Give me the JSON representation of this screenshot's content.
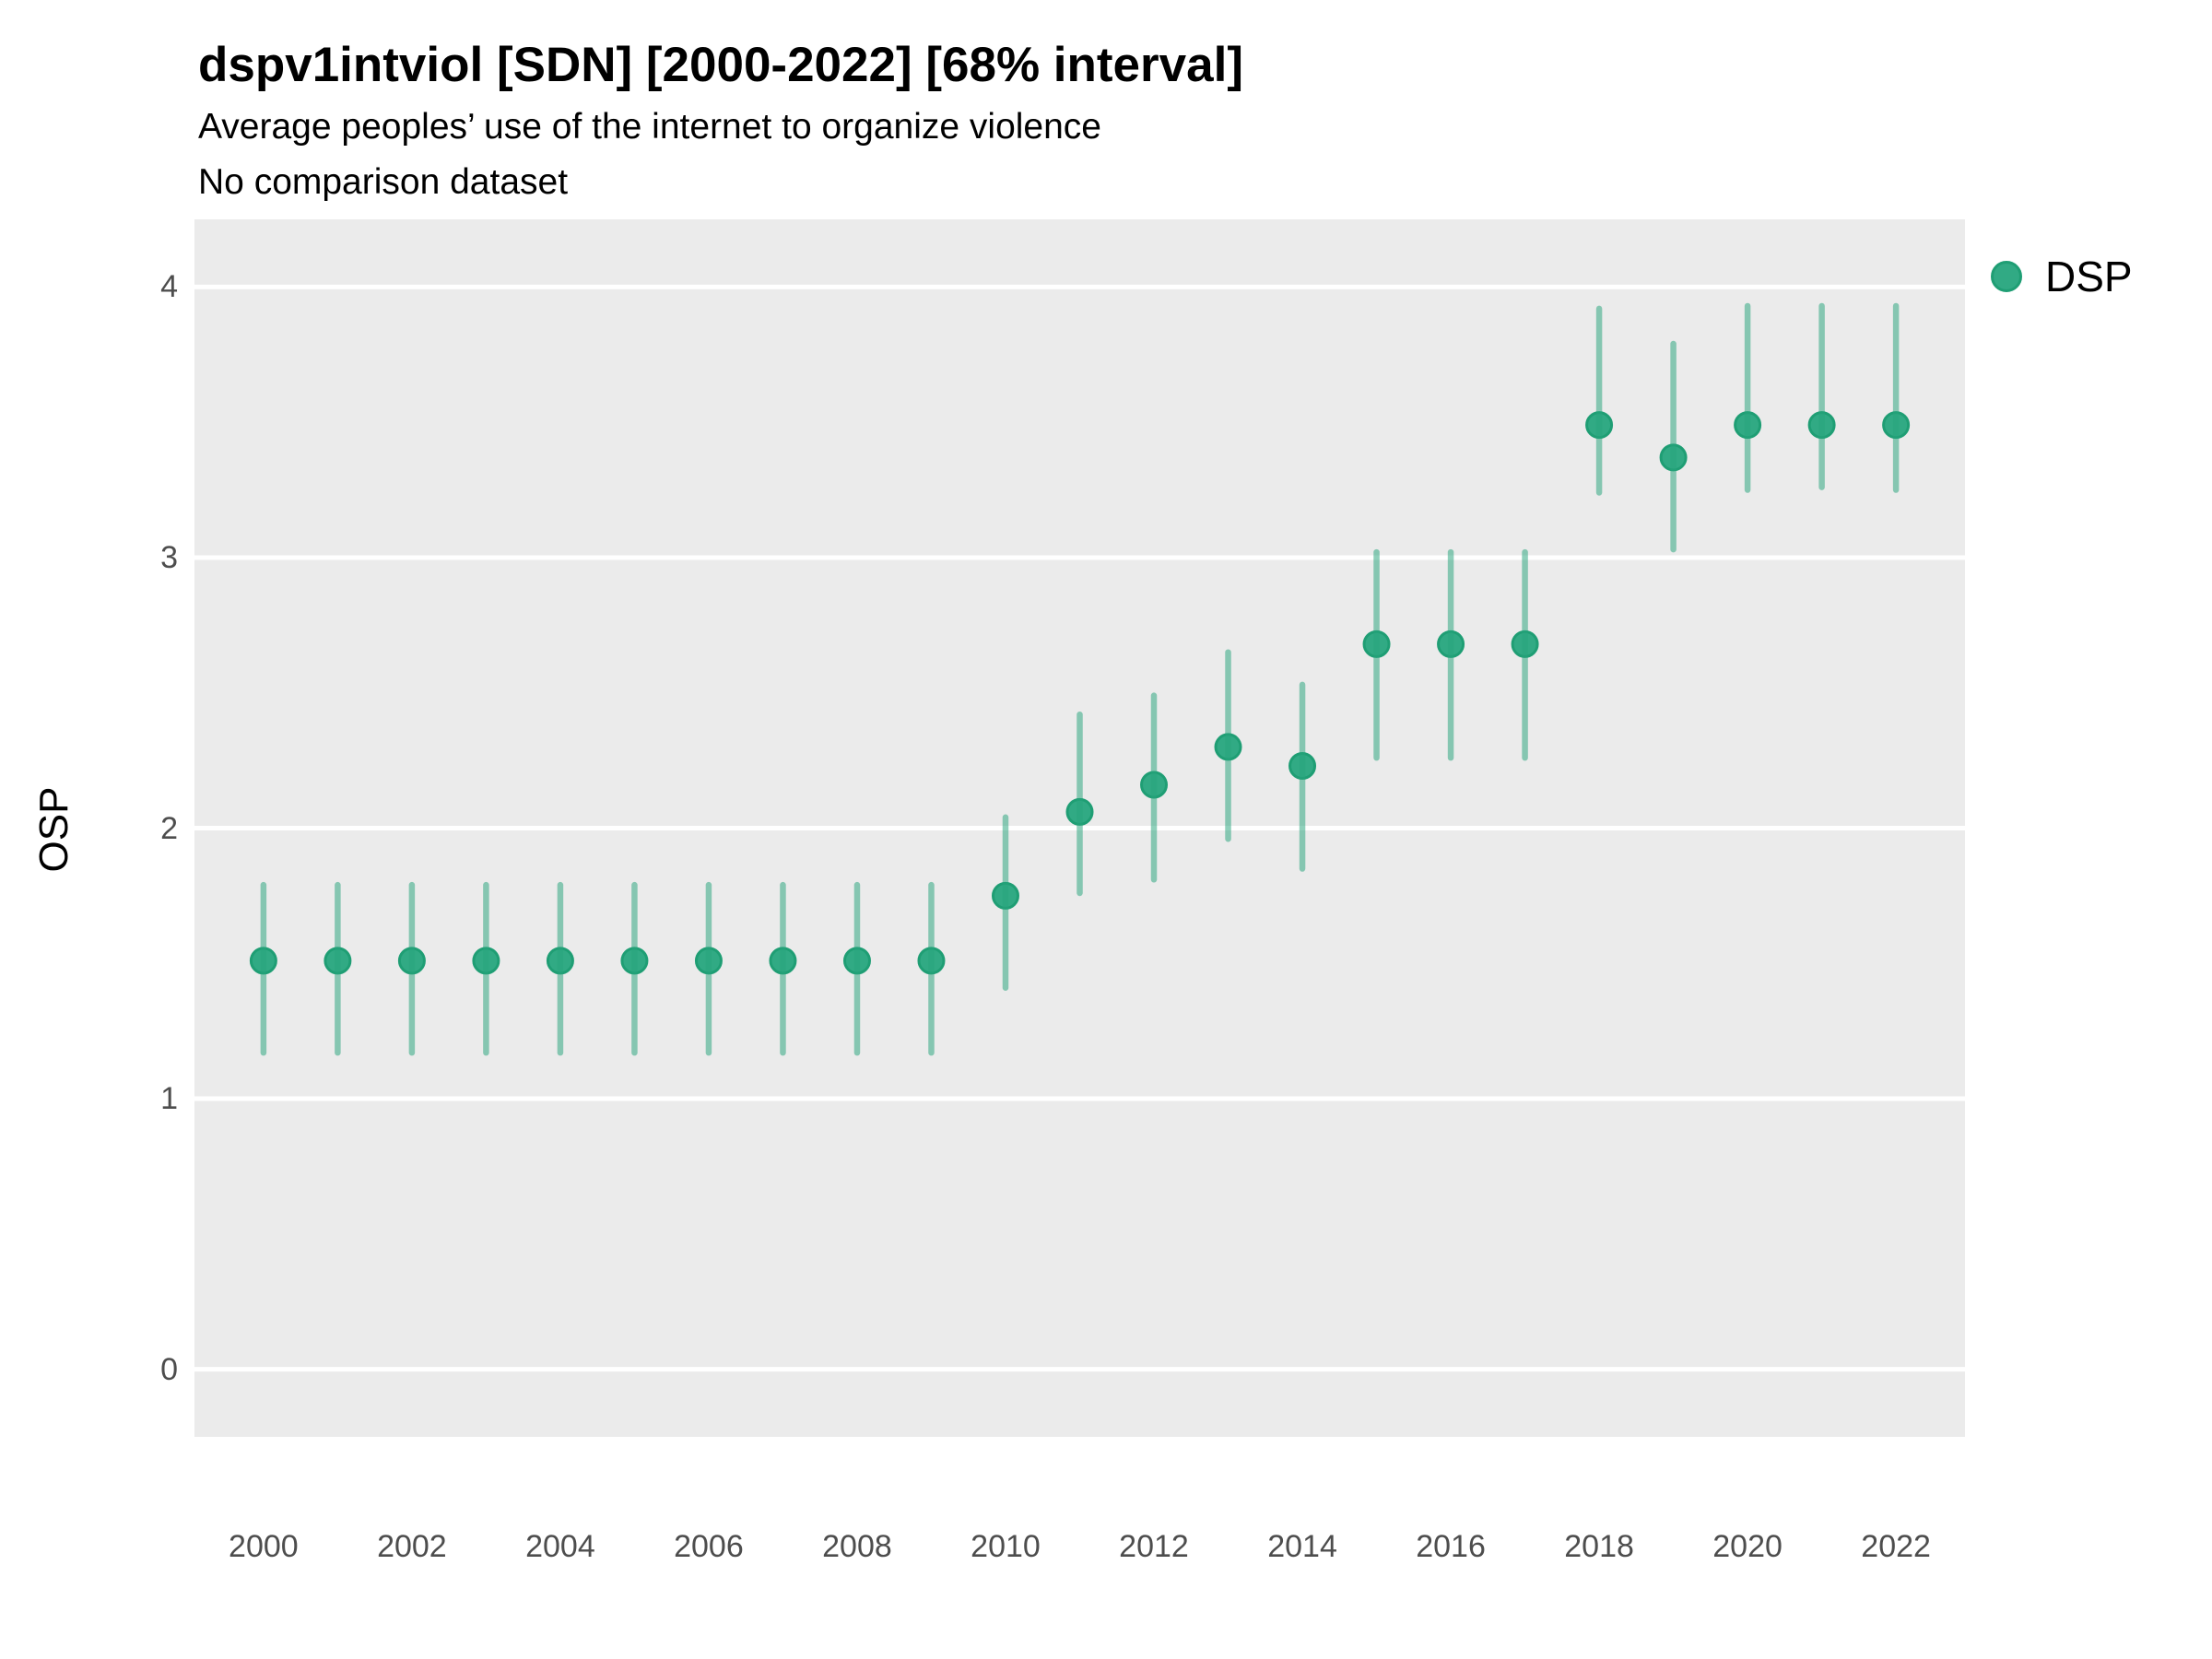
{
  "header": {
    "title": "dspv1intviol [SDN] [2000-2022] [68% interval]",
    "subtitle": "Average peoples’ use of the internet to organize violence",
    "note": "No comparison dataset"
  },
  "colors": {
    "panel_background": "#EBEBEB",
    "gridline": "#FFFFFF",
    "point_fill": "#31AA84",
    "point_stroke": "#1F9E74",
    "interval_base": "#28A57C",
    "tick_text": "#4d4d4d"
  },
  "chart_data": {
    "type": "pointrange",
    "title": "dspv1intviol [SDN] [2000-2022] [68% interval]",
    "subtitle": "Average peoples’ use of the internet to organize violence",
    "note": "No comparison dataset",
    "xlabel": "",
    "ylabel": "OSP",
    "interval_level": "68%",
    "x_ticks": [
      2000,
      2002,
      2004,
      2006,
      2008,
      2010,
      2012,
      2014,
      2016,
      2018,
      2020,
      2022
    ],
    "y_ticks": [
      4,
      3,
      2,
      1,
      0
    ],
    "xlim": [
      1999.07,
      2022.93
    ],
    "ylim": [
      -0.25,
      4.25
    ],
    "grid": "horizontal major gridlines only, white on gray panel",
    "legend_position": "right-top",
    "legend": [
      {
        "label": "DSP",
        "color": "#31AA84"
      }
    ],
    "series": [
      {
        "name": "DSP",
        "x": [
          2000,
          2001,
          2002,
          2003,
          2004,
          2005,
          2006,
          2007,
          2008,
          2009,
          2010,
          2011,
          2012,
          2013,
          2014,
          2015,
          2016,
          2017,
          2018,
          2019,
          2020,
          2021,
          2022
        ],
        "y": [
          1.51,
          1.51,
          1.51,
          1.51,
          1.51,
          1.51,
          1.51,
          1.51,
          1.51,
          1.51,
          1.75,
          2.06,
          2.16,
          2.3,
          2.23,
          2.68,
          2.68,
          2.68,
          3.49,
          3.37,
          3.49,
          3.49,
          3.49
        ],
        "lo": [
          1.17,
          1.17,
          1.17,
          1.17,
          1.17,
          1.17,
          1.17,
          1.17,
          1.17,
          1.17,
          1.41,
          1.76,
          1.81,
          1.96,
          1.85,
          2.26,
          2.26,
          2.26,
          3.24,
          3.03,
          3.25,
          3.26,
          3.25
        ],
        "hi": [
          1.79,
          1.79,
          1.79,
          1.79,
          1.79,
          1.79,
          1.79,
          1.79,
          1.79,
          1.79,
          2.04,
          2.42,
          2.49,
          2.65,
          2.53,
          3.02,
          3.02,
          3.02,
          3.92,
          3.79,
          3.93,
          3.93,
          3.93
        ]
      }
    ]
  }
}
